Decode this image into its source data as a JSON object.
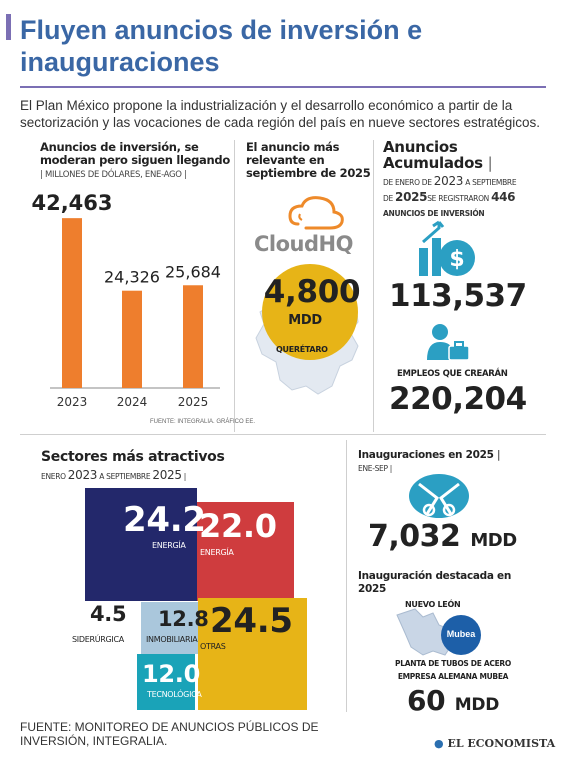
{
  "header": {
    "title": "Fluyen anuncios de inversión e inauguraciones",
    "intro": "El Plan México propone la industrialización y el desarrollo económico a partir de la sectorización y las vocaciones de cada región del país en nueve sectores estratégicos."
  },
  "bar_panel": {
    "title": "Anuncios de inversión, se moderan pero siguen llegando",
    "unit": "MILLONES DE DÓLARES, ENE-AGO",
    "source": "FUENTE: INTEGRALIA. GRÁFICO EE."
  },
  "highlight": {
    "title": "El anuncio más relevante en septiembre de 2025",
    "company": "CloudHQ",
    "amount": "4,800",
    "unit": "MDD",
    "state": "QUERÉTARO"
  },
  "accumulated": {
    "title1": "Anuncios",
    "title2": "Acumulados",
    "line1_a": "DE ENERO DE",
    "line1_year": "2023",
    "line1_b": "A SEPTIEMBRE",
    "line2_a": "DE",
    "line2_year": "2025",
    "line2_b": "SE REGISTRARON",
    "line2_count": "446",
    "line3": "ANUNCIOS DE INVERSIÓN",
    "total": "113,537",
    "jobs_label": "EMPLEOS QUE CREARÁN",
    "jobs": "220,204"
  },
  "sectors_panel": {
    "title": "Sectores más atractivos",
    "sub_a": "ENERO",
    "sub_year1": "2023",
    "sub_b": "A SEPTIEMBRE",
    "sub_year2": "2025"
  },
  "inaugurations": {
    "title": "Inauguraciones en 2025",
    "period": "ENE-SEP",
    "amount": "7,032",
    "unit": "MDD",
    "featured_title": "Inauguración destacada en 2025",
    "state": "NUEVO LEÓN",
    "company": "Mubea",
    "desc1": "PLANTA DE TUBOS DE ACERO",
    "desc2": "EMPRESA ALEMANA MUBEA",
    "featured_amount": "60",
    "featured_unit": "MDD"
  },
  "footer": {
    "source": "FUENTE: MONITOREO DE ANUNCIOS PÚBLICOS DE INVERSIÓN, INTEGRALIA.",
    "brand": "EL ECONOMISTA"
  },
  "colors": {
    "accent": "#3a67a5",
    "bar": "#ee7e2d",
    "energia": "#23286b",
    "energia2": "#cf3c3e",
    "otras": "#e7b417",
    "inmobiliaria": "#aac7dc",
    "tecnologica": "#1aa3b8",
    "icons": "#2b9fc3"
  },
  "chart_data": [
    {
      "type": "bar",
      "title": "Anuncios de inversión, se moderan pero siguen llegando",
      "ylabel": "MILLONES DE DÓLARES, ENE-AGO",
      "categories": [
        "2023",
        "2024",
        "2025"
      ],
      "values": [
        42463,
        24326,
        25684
      ],
      "value_labels": [
        "42,463",
        "24,326",
        "25,684"
      ],
      "ylim": [
        0,
        45000
      ]
    },
    {
      "type": "treemap",
      "title": "Sectores más atractivos",
      "items": [
        {
          "label": "ENERGÍA",
          "value": 24.2,
          "value_label": "24.2"
        },
        {
          "label": "ENERGÍA",
          "value": 22.0,
          "value_label": "22.0"
        },
        {
          "label": "OTRAS",
          "value": 24.5,
          "value_label": "24.5"
        },
        {
          "label": "INMOBILIARIA",
          "value": 12.8,
          "value_label": "12.8"
        },
        {
          "label": "TECNOLÓGICA",
          "value": 12.0,
          "value_label": "12.0"
        },
        {
          "label": "SIDERÚRGICA",
          "value": 4.5,
          "value_label": "4.5"
        }
      ]
    }
  ]
}
